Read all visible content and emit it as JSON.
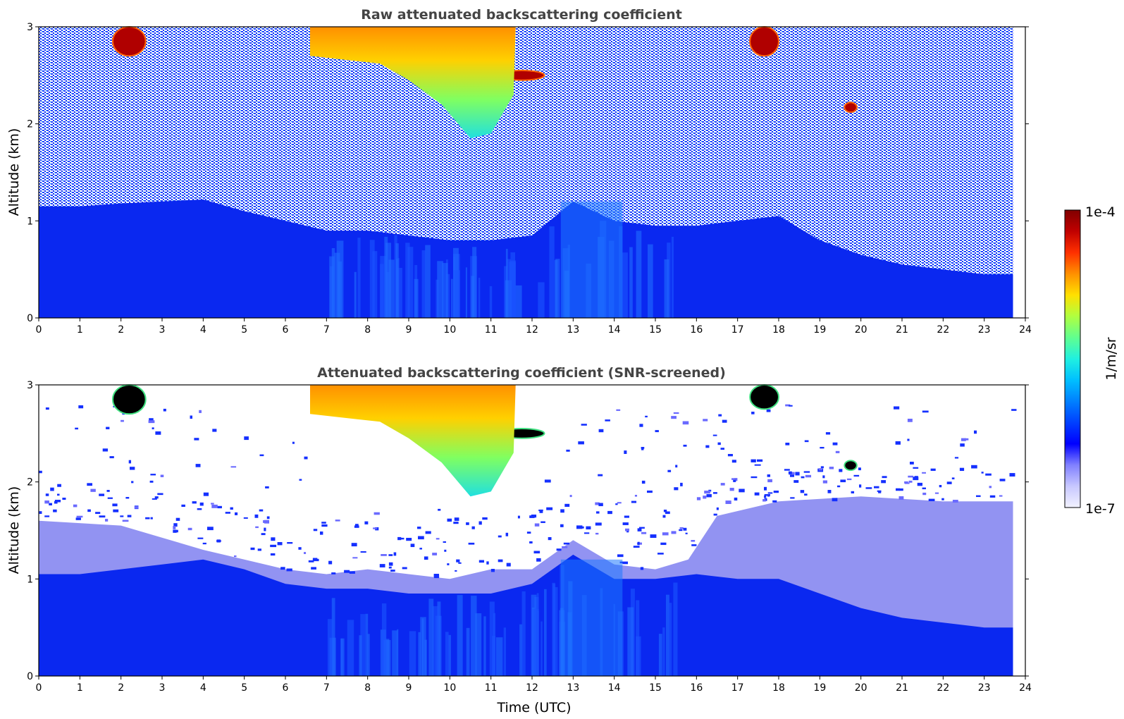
{
  "chart_data": [
    {
      "type": "heatmap",
      "title": "Raw attenuated backscattering coefficient",
      "xlabel": "",
      "ylabel": "Altitude (km)",
      "xlim": [
        0,
        24
      ],
      "ylim": [
        0,
        3
      ],
      "x_ticks": [
        "0",
        "1",
        "2",
        "3",
        "4",
        "5",
        "6",
        "7",
        "8",
        "9",
        "10",
        "11",
        "12",
        "13",
        "14",
        "15",
        "16",
        "17",
        "18",
        "19",
        "20",
        "21",
        "22",
        "23",
        "24"
      ],
      "y_ticks": [
        "0",
        "1",
        "2",
        "3"
      ],
      "data_time_end": 23.7,
      "boundary_layer_top_km": [
        [
          0,
          1.15
        ],
        [
          1,
          1.15
        ],
        [
          2,
          1.18
        ],
        [
          3,
          1.2
        ],
        [
          4,
          1.22
        ],
        [
          5,
          1.1
        ],
        [
          6,
          1.0
        ],
        [
          7,
          0.9
        ],
        [
          8,
          0.9
        ],
        [
          9,
          0.85
        ],
        [
          10,
          0.8
        ],
        [
          11,
          0.8
        ],
        [
          12,
          0.85
        ],
        [
          13,
          1.2
        ],
        [
          14,
          1.0
        ],
        [
          15,
          0.95
        ],
        [
          16,
          0.95
        ],
        [
          17,
          1.0
        ],
        [
          18,
          1.05
        ],
        [
          19,
          0.8
        ],
        [
          20,
          0.65
        ],
        [
          21,
          0.55
        ],
        [
          22,
          0.5
        ],
        [
          23,
          0.45
        ],
        [
          23.7,
          0.45
        ]
      ],
      "features": [
        {
          "kind": "cloud",
          "t0": 1.8,
          "t1": 2.6,
          "z0": 2.7,
          "z1": 3.0,
          "level": "high"
        },
        {
          "kind": "cloud",
          "t0": 17.3,
          "t1": 18.0,
          "z0": 2.7,
          "z1": 3.0,
          "level": "high"
        },
        {
          "kind": "cloud",
          "t0": 10.3,
          "t1": 11.0,
          "z0": 2.35,
          "z1": 2.6,
          "level": "high"
        },
        {
          "kind": "cloud",
          "t0": 11.2,
          "t1": 12.3,
          "z0": 2.45,
          "z1": 2.55,
          "level": "high"
        },
        {
          "kind": "cloud",
          "t0": 19.6,
          "t1": 19.9,
          "z0": 2.12,
          "z1": 2.22,
          "level": "high"
        },
        {
          "kind": "cloud",
          "t0": 6.6,
          "t1": 11.6,
          "z0": 1.8,
          "z1": 3.0,
          "level": "mid"
        }
      ]
    },
    {
      "type": "heatmap",
      "title": "Attenuated backscattering coefficient (SNR-screened)",
      "xlabel": "Time (UTC)",
      "ylabel": "Altitude (km)",
      "xlim": [
        0,
        24
      ],
      "ylim": [
        0,
        3
      ],
      "x_ticks": [
        "0",
        "1",
        "2",
        "3",
        "4",
        "5",
        "6",
        "7",
        "8",
        "9",
        "10",
        "11",
        "12",
        "13",
        "14",
        "15",
        "16",
        "17",
        "18",
        "19",
        "20",
        "21",
        "22",
        "23",
        "24"
      ],
      "y_ticks": [
        "0",
        "1",
        "2",
        "3"
      ],
      "data_time_end": 23.7,
      "boundary_layer_top_km": [
        [
          0,
          1.05
        ],
        [
          1,
          1.05
        ],
        [
          2,
          1.1
        ],
        [
          3,
          1.15
        ],
        [
          4,
          1.2
        ],
        [
          5,
          1.1
        ],
        [
          6,
          0.95
        ],
        [
          7,
          0.9
        ],
        [
          8,
          0.9
        ],
        [
          9,
          0.85
        ],
        [
          10,
          0.85
        ],
        [
          11,
          0.85
        ],
        [
          12,
          0.95
        ],
        [
          13,
          1.25
        ],
        [
          14,
          1.0
        ],
        [
          15,
          1.0
        ],
        [
          16,
          1.05
        ],
        [
          17,
          1.0
        ],
        [
          18,
          1.0
        ],
        [
          19,
          0.85
        ],
        [
          20,
          0.7
        ],
        [
          21,
          0.6
        ],
        [
          22,
          0.55
        ],
        [
          23,
          0.5
        ],
        [
          23.7,
          0.5
        ]
      ],
      "aerosol_layer_top_km": [
        [
          0,
          1.6
        ],
        [
          2,
          1.55
        ],
        [
          4,
          1.3
        ],
        [
          5,
          1.2
        ],
        [
          6,
          1.1
        ],
        [
          7,
          1.05
        ],
        [
          8,
          1.1
        ],
        [
          9,
          1.05
        ],
        [
          10,
          1.0
        ],
        [
          11,
          1.1
        ],
        [
          12,
          1.1
        ],
        [
          13,
          1.4
        ],
        [
          14,
          1.15
        ],
        [
          15,
          1.1
        ],
        [
          15.8,
          1.2
        ],
        [
          16.5,
          1.65
        ],
        [
          18,
          1.8
        ],
        [
          20,
          1.85
        ],
        [
          22,
          1.8
        ],
        [
          23.7,
          1.8
        ]
      ],
      "features": [
        {
          "kind": "cloud",
          "t0": 1.8,
          "t1": 2.6,
          "z0": 2.7,
          "z1": 3.0,
          "level": "high"
        },
        {
          "kind": "cloud",
          "t0": 17.3,
          "t1": 18.0,
          "z0": 2.75,
          "z1": 3.0,
          "level": "high"
        },
        {
          "kind": "cloud",
          "t0": 10.3,
          "t1": 11.0,
          "z0": 2.35,
          "z1": 2.6,
          "level": "high"
        },
        {
          "kind": "cloud",
          "t0": 11.2,
          "t1": 12.3,
          "z0": 2.45,
          "z1": 2.55,
          "level": "high"
        },
        {
          "kind": "cloud",
          "t0": 19.6,
          "t1": 19.9,
          "z0": 2.12,
          "z1": 2.22,
          "level": "high"
        },
        {
          "kind": "cloud",
          "t0": 6.6,
          "t1": 11.6,
          "z0": 1.8,
          "z1": 3.0,
          "level": "mid"
        }
      ]
    }
  ],
  "colorbar": {
    "label": "1/m/sr",
    "max_label": "1e-4",
    "min_label": "1e-7",
    "scale": "log",
    "colormap": "jet",
    "colors": [
      "#f2f2ff",
      "#c8c8ff",
      "#8080ff",
      "#0000ff",
      "#0040ff",
      "#0080ff",
      "#00c0ff",
      "#20f0e0",
      "#60ff90",
      "#b0ff40",
      "#ffe000",
      "#ff9000",
      "#ff3000",
      "#c00000",
      "#800000"
    ]
  }
}
